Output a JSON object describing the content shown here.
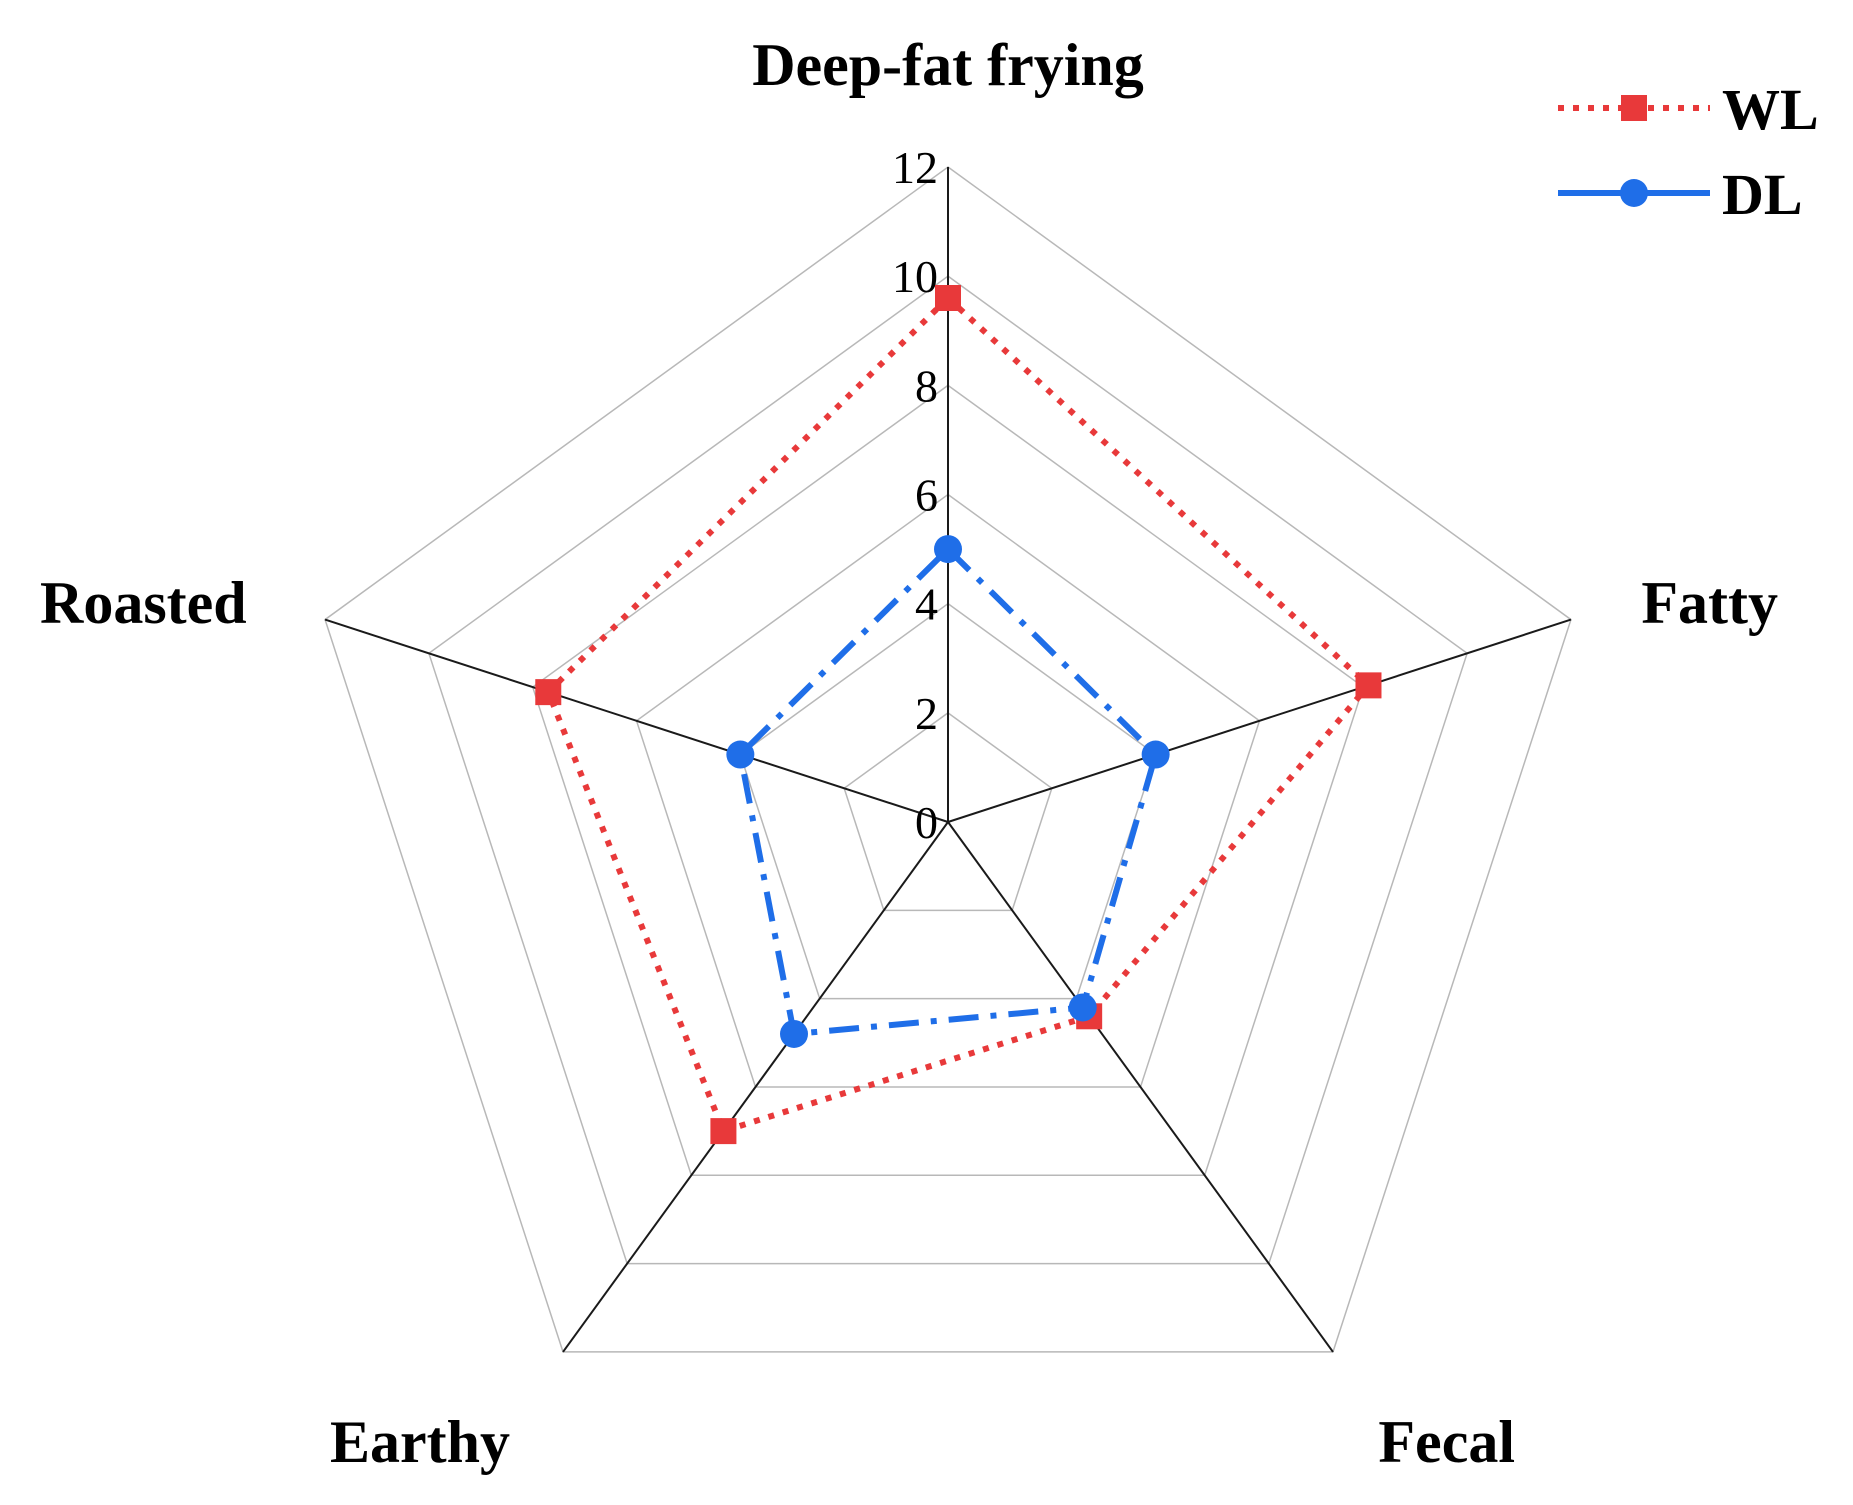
{
  "chart_data": {
    "type": "radar",
    "axes": [
      "Deep-fat frying",
      "Fatty",
      "Fecal",
      "Earthy",
      "Roasted"
    ],
    "rlim": [
      0,
      12
    ],
    "ticks": [
      "0",
      "2",
      "4",
      "6",
      "8",
      "10",
      "12"
    ],
    "grid": true,
    "legend_position": "top-right",
    "series": [
      {
        "name": "WL",
        "values": [
          9.6,
          8.1,
          4.4,
          7.0,
          7.7
        ],
        "color": "#e8393a",
        "line_style": "dotted",
        "marker": "square"
      },
      {
        "name": "DL",
        "values": [
          5.0,
          4.0,
          4.2,
          4.8,
          4.0
        ],
        "color": "#1f6ee8",
        "line_style": "dash-dot",
        "marker": "circle"
      }
    ]
  }
}
